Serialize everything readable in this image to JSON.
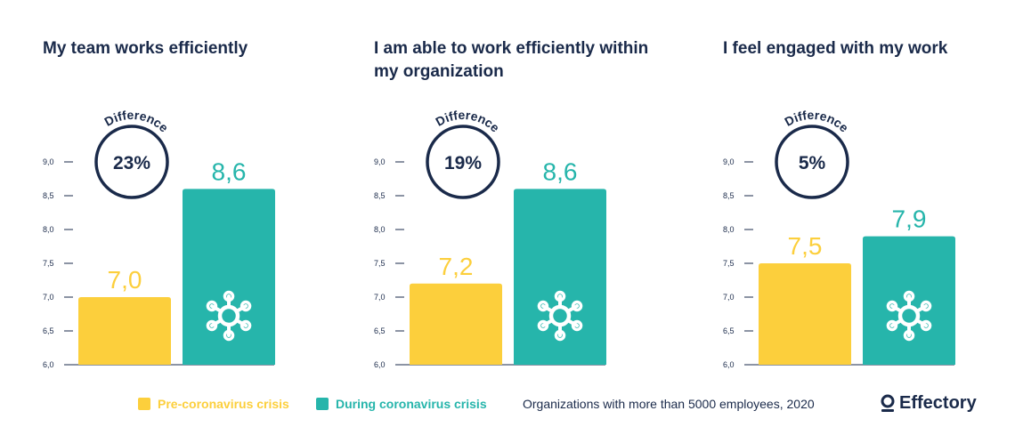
{
  "colors": {
    "pre": "#fccf3c",
    "during": "#26b5ab",
    "ink": "#1a2a4a"
  },
  "chart_data": [
    {
      "type": "bar",
      "title": "My team works efficiently",
      "categories": [
        "Pre-coronavirus crisis",
        "During coronavirus crisis"
      ],
      "values": [
        7.0,
        8.6
      ],
      "value_labels": [
        "7,0",
        "8,6"
      ],
      "ylim": [
        6.0,
        9.0
      ],
      "yticks": [
        "6,0",
        "6,5",
        "7,0",
        "7,5",
        "8,0",
        "8,5",
        "9,0"
      ],
      "difference_label": "Difference",
      "difference_value": "23%"
    },
    {
      "type": "bar",
      "title": "I am able to work efficiently within my organization",
      "categories": [
        "Pre-coronavirus crisis",
        "During coronavirus crisis"
      ],
      "values": [
        7.2,
        8.6
      ],
      "value_labels": [
        "7,2",
        "8,6"
      ],
      "ylim": [
        6.0,
        9.0
      ],
      "yticks": [
        "6,0",
        "6,5",
        "7,0",
        "7,5",
        "8,0",
        "8,5",
        "9,0"
      ],
      "difference_label": "Difference",
      "difference_value": "19%"
    },
    {
      "type": "bar",
      "title": "I feel engaged with my work",
      "categories": [
        "Pre-coronavirus crisis",
        "During coronavirus crisis"
      ],
      "values": [
        7.5,
        7.9
      ],
      "value_labels": [
        "7,5",
        "7,9"
      ],
      "ylim": [
        6.0,
        9.0
      ],
      "yticks": [
        "6,0",
        "6,5",
        "7,0",
        "7,5",
        "8,0",
        "8,5",
        "9,0"
      ],
      "difference_label": "Difference",
      "difference_value": "5%"
    }
  ],
  "legend": {
    "pre_label": "Pre-coronavirus crisis",
    "during_label": "During coronavirus crisis"
  },
  "footnote": "Organizations with more than 5000 employees, 2020",
  "brand": {
    "name": "Effectory",
    "icon": "effectory-logo-icon"
  },
  "icons": {
    "bar_icon": "virus-icon"
  }
}
